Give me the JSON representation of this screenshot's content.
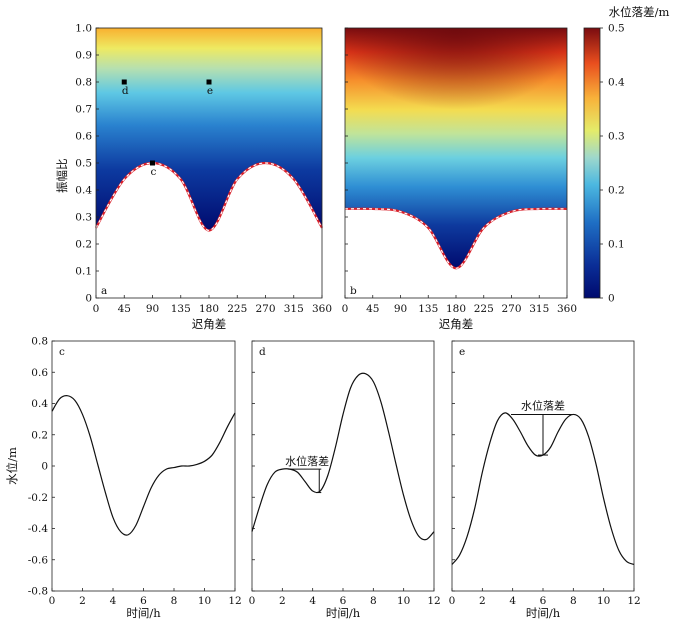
{
  "chart_data": [
    {
      "id": "a",
      "type": "heatmap",
      "panel_label": "a",
      "xlabel": "迟角差",
      "ylabel": "振幅比",
      "xlim": [
        0,
        360
      ],
      "ylim": [
        0,
        1
      ],
      "xticks": [
        "0",
        "45",
        "90",
        "135",
        "180",
        "225",
        "270",
        "315",
        "360"
      ],
      "yticks": [
        "0",
        "0.1",
        "0.2",
        "0.3",
        "0.4",
        "0.5",
        "0.6",
        "0.7",
        "0.8",
        "0.9",
        "1.0"
      ],
      "colormap": "jet",
      "boundary_curve": {
        "x": [
          0,
          45,
          90,
          135,
          180,
          225,
          270,
          315,
          360
        ],
        "y": [
          0.26,
          0.44,
          0.5,
          0.44,
          0.25,
          0.44,
          0.5,
          0.44,
          0.26
        ],
        "style": "red-white-dashed"
      },
      "markers": [
        {
          "label": "c",
          "x": 90,
          "y": 0.5
        },
        {
          "label": "d",
          "x": 45,
          "y": 0.8
        },
        {
          "label": "e",
          "x": 180,
          "y": 0.8
        }
      ]
    },
    {
      "id": "b",
      "type": "heatmap",
      "panel_label": "b",
      "xlabel": "迟角差",
      "xlim": [
        0,
        360
      ],
      "ylim": [
        0,
        1
      ],
      "xticks": [
        "0",
        "45",
        "90",
        "135",
        "180",
        "225",
        "270",
        "315",
        "360"
      ],
      "colormap": "jet",
      "boundary_curve": {
        "x": [
          0,
          45,
          90,
          135,
          180,
          225,
          270,
          315,
          360
        ],
        "y": [
          0.33,
          0.33,
          0.32,
          0.26,
          0.11,
          0.26,
          0.32,
          0.33,
          0.33
        ],
        "style": "red-white-dashed"
      },
      "colorbar": {
        "title": "水位落差/m",
        "range": [
          0,
          0.5
        ],
        "ticks": [
          "0",
          "0.1",
          "0.2",
          "0.3",
          "0.4",
          "0.5"
        ]
      }
    },
    {
      "id": "c",
      "type": "line",
      "panel_label": "c",
      "xlabel": "时间/h",
      "ylabel": "水位/m",
      "xlim": [
        0,
        12
      ],
      "ylim": [
        -0.8,
        0.8
      ],
      "xticks": [
        "0",
        "2",
        "4",
        "6",
        "8",
        "10",
        "12"
      ],
      "yticks": [
        "-0.8",
        "-0.6",
        "-0.4",
        "-0.2",
        "0",
        "0.2",
        "0.4",
        "0.6",
        "0.8"
      ],
      "series": [
        {
          "x": [
            0,
            0.5,
            1,
            1.5,
            2,
            2.5,
            3,
            3.5,
            4,
            4.5,
            5,
            5.5,
            6,
            6.5,
            7,
            7.5,
            8,
            8.5,
            9,
            9.5,
            10,
            10.5,
            11,
            11.5,
            12
          ],
          "y": [
            0.35,
            0.43,
            0.45,
            0.42,
            0.33,
            0.19,
            0.01,
            -0.17,
            -0.33,
            -0.42,
            -0.44,
            -0.38,
            -0.26,
            -0.14,
            -0.06,
            -0.02,
            -0.01,
            0,
            0,
            0.01,
            0.03,
            0.07,
            0.15,
            0.25,
            0.34
          ]
        }
      ]
    },
    {
      "id": "d",
      "type": "line",
      "panel_label": "d",
      "xlabel": "时间/h",
      "xlim": [
        0,
        12
      ],
      "ylim": [
        -0.8,
        0.8
      ],
      "xticks": [
        "0",
        "2",
        "4",
        "6",
        "8",
        "10",
        "12"
      ],
      "annotation": {
        "text": "水位落差",
        "x1": 2.5,
        "x2": 4.5,
        "y_top": -0.02,
        "y_bottom": -0.17
      },
      "series": [
        {
          "x": [
            0,
            0.5,
            1,
            1.5,
            2,
            2.5,
            3,
            3.5,
            4,
            4.5,
            5,
            5.5,
            6,
            6.5,
            7,
            7.5,
            8,
            8.5,
            9,
            9.5,
            10,
            10.5,
            11,
            11.5,
            12
          ],
          "y": [
            -0.42,
            -0.26,
            -0.12,
            -0.04,
            -0.02,
            -0.02,
            -0.04,
            -0.1,
            -0.16,
            -0.16,
            -0.06,
            0.12,
            0.33,
            0.5,
            0.58,
            0.59,
            0.54,
            0.41,
            0.22,
            0.01,
            -0.19,
            -0.35,
            -0.45,
            -0.47,
            -0.42
          ]
        }
      ]
    },
    {
      "id": "e",
      "type": "line",
      "panel_label": "e",
      "xlabel": "时间/h",
      "xlim": [
        0,
        12
      ],
      "ylim": [
        -0.8,
        0.8
      ],
      "xticks": [
        "0",
        "2",
        "4",
        "6",
        "8",
        "10",
        "12"
      ],
      "annotation": {
        "text": "水位落差",
        "x1": 5.9,
        "x2": 6.1,
        "y_top": 0.33,
        "y_bottom": 0.07
      },
      "series": [
        {
          "x": [
            0,
            0.5,
            1,
            1.5,
            2,
            2.5,
            3,
            3.5,
            4,
            4.5,
            5,
            5.5,
            6,
            6.5,
            7,
            7.5,
            8,
            8.5,
            9,
            9.5,
            10,
            10.5,
            11,
            11.5,
            12
          ],
          "y": [
            -0.63,
            -0.57,
            -0.45,
            -0.27,
            -0.04,
            0.15,
            0.29,
            0.34,
            0.3,
            0.22,
            0.13,
            0.07,
            0.07,
            0.12,
            0.22,
            0.3,
            0.33,
            0.3,
            0.19,
            0.01,
            -0.21,
            -0.4,
            -0.54,
            -0.61,
            -0.63
          ]
        }
      ]
    }
  ]
}
